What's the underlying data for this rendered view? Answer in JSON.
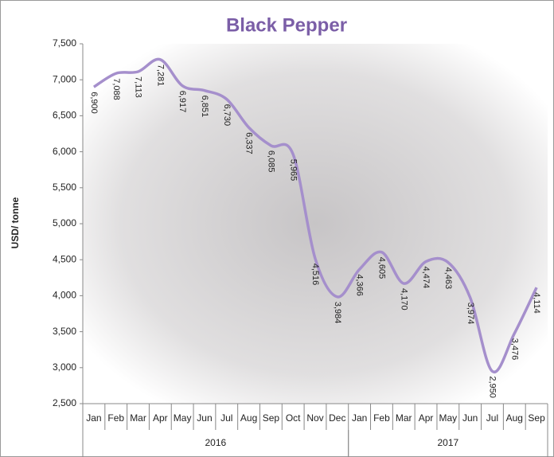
{
  "chart_data": {
    "type": "line",
    "title": "Black Pepper",
    "y_label": "USD/ tonne",
    "categories": [
      "Jan",
      "Feb",
      "Mar",
      "Apr",
      "May",
      "Jun",
      "Jul",
      "Aug",
      "Sep",
      "Oct",
      "Nov",
      "Dec",
      "Jan",
      "Feb",
      "Mar",
      "Apr",
      "May",
      "Jun",
      "Jul",
      "Aug",
      "Sep"
    ],
    "category_groups": [
      {
        "label": "2016",
        "start": 0,
        "end": 11
      },
      {
        "label": "2017",
        "start": 12,
        "end": 20
      }
    ],
    "series": [
      {
        "name": "Black Pepper",
        "color": "#a58fcc",
        "values": [
          6900,
          7088,
          7113,
          7281,
          6917,
          6851,
          6730,
          6337,
          6085,
          5965,
          4516,
          3984,
          4366,
          4605,
          4170,
          4474,
          4463,
          3974,
          2950,
          3476,
          4114
        ],
        "value_labels": [
          "6,900",
          "7,088",
          "7,113",
          "7,281",
          "6,917",
          "6,851",
          "6,730",
          "6,337",
          "6,085",
          "5,965",
          "4,516",
          "3,984",
          "4,366",
          "4,605",
          "4,170",
          "4,474",
          "4,463",
          "3,974",
          "2,950",
          "3,476",
          "4,114"
        ]
      }
    ],
    "ylim": [
      2500,
      7500
    ],
    "yticks": [
      {
        "value": 2500,
        "label": "2,500"
      },
      {
        "value": 3000,
        "label": "3,000"
      },
      {
        "value": 3500,
        "label": "3,500"
      },
      {
        "value": 4000,
        "label": "4,000"
      },
      {
        "value": 4500,
        "label": "4,500"
      },
      {
        "value": 5000,
        "label": "5,000"
      },
      {
        "value": 5500,
        "label": "5,500"
      },
      {
        "value": 6000,
        "label": "6,000"
      },
      {
        "value": 6500,
        "label": "6,500"
      },
      {
        "value": 7000,
        "label": "7,000"
      },
      {
        "value": 7500,
        "label": "7,500"
      }
    ],
    "grid": false
  }
}
